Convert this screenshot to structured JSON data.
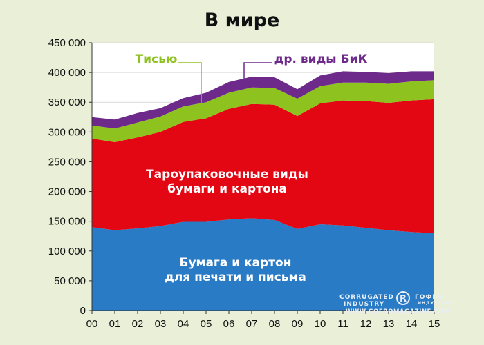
{
  "title": "В мире",
  "colors": {
    "background": "#eaf0d8",
    "plot_bg": "#ffffff",
    "grid": "#d9d9d9",
    "print": "#2a7bc6",
    "packaging": "#e30613",
    "tissue": "#8dc21f",
    "other": "#6d2a8a"
  },
  "watermark": {
    "line1": "CORRUGATED",
    "line2": "INDUSTRY",
    "line3": "ГОФРО",
    "line4": "ИНДУСТРИЯ",
    "url": "WWW.GOFROMAGAZINE.COM"
  },
  "chart_data": {
    "type": "area",
    "title": "В мире",
    "stacked": true,
    "xlabel": "",
    "ylabel": "",
    "x": [
      "00",
      "01",
      "02",
      "03",
      "04",
      "05",
      "06",
      "07",
      "08",
      "09",
      "10",
      "11",
      "12",
      "13",
      "14",
      "15"
    ],
    "ylim": [
      0,
      450000
    ],
    "yticks": [
      0,
      50000,
      100000,
      150000,
      200000,
      250000,
      300000,
      350000,
      400000,
      450000
    ],
    "ytick_labels": [
      "0",
      "50 000",
      "100 000",
      "150 000",
      "200 000",
      "250 000",
      "300 000",
      "350 000",
      "400 000",
      "450 000"
    ],
    "grid": true,
    "series": [
      {
        "name": "Бумага и картон для печати и письма",
        "label_lines": [
          "Бумага и картон",
          "для печати и письма"
        ],
        "color": "#2a7bc6",
        "values": [
          140000,
          135000,
          138000,
          142000,
          149000,
          149000,
          153000,
          155000,
          152000,
          137000,
          145000,
          143000,
          139000,
          135000,
          132000,
          130000
        ]
      },
      {
        "name": "Тароупаковочные виды бумаги и картона",
        "label_lines": [
          "Тароупаковочные виды",
          "бумаги и картона"
        ],
        "color": "#e30613",
        "values": [
          149000,
          148000,
          153000,
          158000,
          168000,
          174000,
          186000,
          192000,
          194000,
          190000,
          203000,
          210000,
          213000,
          214000,
          221000,
          225000
        ]
      },
      {
        "name": "Тисью",
        "color": "#8dc21f",
        "values": [
          22000,
          23000,
          25000,
          26000,
          26000,
          27000,
          27000,
          28000,
          28000,
          29000,
          29000,
          30000,
          31000,
          32000,
          32000,
          32000
        ]
      },
      {
        "name": "др. виды БиК",
        "color": "#6d2a8a",
        "values": [
          14000,
          15000,
          16000,
          14000,
          14000,
          16000,
          18000,
          18000,
          18000,
          16000,
          18000,
          19000,
          18000,
          18000,
          17000,
          15000
        ]
      }
    ]
  }
}
